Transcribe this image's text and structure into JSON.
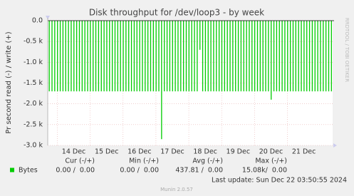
{
  "chart_data": {
    "type": "bar",
    "title": "Disk throughput for /dev/loop3 - by week",
    "y_label": "Pr second read (-) / write (+)",
    "watermark": "RRDTOOL / TOBI OETIKER",
    "categories": [
      null,
      null,
      null,
      null,
      null,
      null,
      null,
      null,
      null,
      "14 Dec",
      null,
      null,
      null,
      null,
      null,
      null,
      null,
      null,
      null,
      null,
      null,
      "15 Dec",
      null,
      null,
      null,
      null,
      null,
      null,
      null,
      null,
      null,
      null,
      null,
      "16 Dec",
      null,
      null,
      null,
      null,
      null,
      null,
      null,
      null,
      null,
      null,
      null,
      "17 Dec",
      null,
      null,
      null,
      null,
      null,
      null,
      null,
      null,
      null,
      null,
      null,
      "18 Dec",
      null,
      null,
      null,
      null,
      null,
      null,
      null,
      null,
      null,
      null,
      null,
      "19 Dec",
      null,
      null,
      null,
      null,
      null,
      null,
      null,
      null,
      null,
      null,
      null,
      "20 Dec",
      null,
      null,
      null,
      null,
      null,
      null,
      null,
      null,
      null,
      null,
      null,
      "21 Dec",
      null,
      null,
      null,
      null,
      null,
      null,
      null,
      null,
      null,
      null
    ],
    "series": [
      {
        "name": "Bytes",
        "color": "#00cc00",
        "values": [
          -1700,
          -1700,
          -1700,
          -1700,
          -1700,
          -1700,
          -1700,
          -1700,
          -1700,
          -1700,
          -1700,
          -1700,
          -1700,
          -1700,
          -1700,
          -1700,
          -1700,
          -1700,
          -1700,
          -1700,
          -1700,
          -1700,
          -1700,
          -1700,
          -1700,
          -1700,
          -1700,
          -1700,
          -1700,
          -1700,
          -1700,
          -1700,
          -1700,
          -1700,
          -1700,
          -1700,
          -1700,
          -1700,
          -1700,
          -1700,
          -1700,
          -2850,
          -1700,
          -1700,
          -1700,
          -1700,
          -1700,
          -1700,
          -1700,
          -1700,
          -1700,
          -1700,
          -1700,
          -1700,
          -1700,
          -700,
          -1700,
          -1700,
          -1700,
          -1700,
          -1700,
          -1700,
          -1700,
          -1700,
          -1700,
          -1700,
          -1700,
          -1700,
          -1700,
          -1700,
          -1700,
          -1700,
          -1700,
          -1700,
          -1700,
          -1700,
          -1700,
          -1700,
          -1700,
          -1700,
          -1700,
          -1900,
          -1700,
          -1700,
          -1700,
          -1700,
          -1700,
          -1700,
          -1700,
          -1700,
          -1700,
          -1700,
          -1700,
          -1700,
          -1700,
          -1700,
          -1700,
          -1700,
          -1700,
          -1700,
          -1700,
          -1700,
          -1700,
          -1700
        ],
        "stats": [
          "0.00 /  0.00",
          "0.00 /  0.00",
          "437.81 /  0.00",
          "15.08k/  0.00"
        ]
      }
    ],
    "legend_headers": [
      "Cur (-/+)",
      "Min (-/+)",
      "Avg (-/+)",
      "Max (-/+)"
    ],
    "ylim": [
      -3000,
      0
    ],
    "yticks": [
      {
        "value": 0,
        "label": "0.0"
      },
      {
        "value": -500,
        "label": "-0.5 k"
      },
      {
        "value": -1000,
        "label": "-1.0 k"
      },
      {
        "value": -1500,
        "label": "-1.5 k"
      },
      {
        "value": -2000,
        "label": "-2.0 k"
      },
      {
        "value": -2500,
        "label": "-2.5 k"
      },
      {
        "value": -3000,
        "label": "-3.0 k"
      }
    ],
    "grid": true,
    "last_update": "Last update: Sun Dec 22 03:50:55 2024",
    "version": "Munin 2.0.57"
  }
}
